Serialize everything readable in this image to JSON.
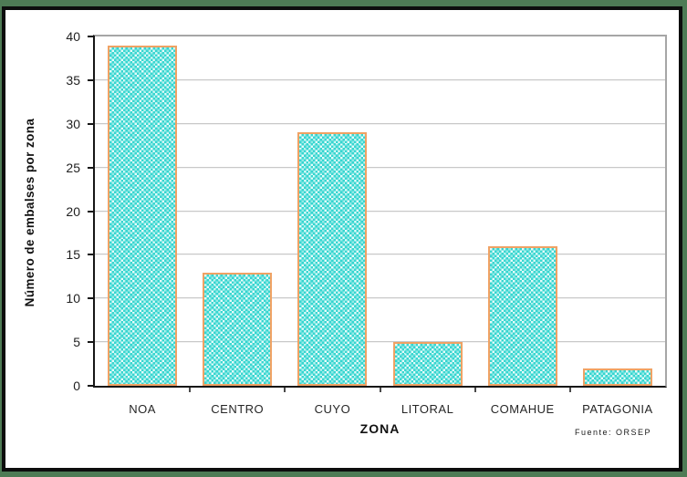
{
  "frame": {
    "outer_border_color": "#4e7b55",
    "inner_border_color": "#0d0d0d",
    "background_color": "#ffffff"
  },
  "chart_data": {
    "type": "bar",
    "categories": [
      "NOA",
      "CENTRO",
      "CUYO",
      "LITORAL",
      "COMAHUE",
      "PATAGONIA"
    ],
    "values": [
      39,
      13,
      29,
      5,
      16,
      2
    ],
    "title": "",
    "xlabel": "ZONA",
    "ylabel": "Número de embalses por zona",
    "source_note": "Fuente: ORSEP",
    "ylim": [
      0,
      40
    ],
    "yticks": [
      0,
      5,
      10,
      15,
      20,
      25,
      30,
      35,
      40
    ],
    "grid": true,
    "legend": false,
    "bar_fill_color": "#2fd4ce",
    "bar_border_color": "#f0a264",
    "gridline_color": "#c8c8c8",
    "axis_color": "#161616",
    "plot_border_color": "#a6a6a6"
  }
}
